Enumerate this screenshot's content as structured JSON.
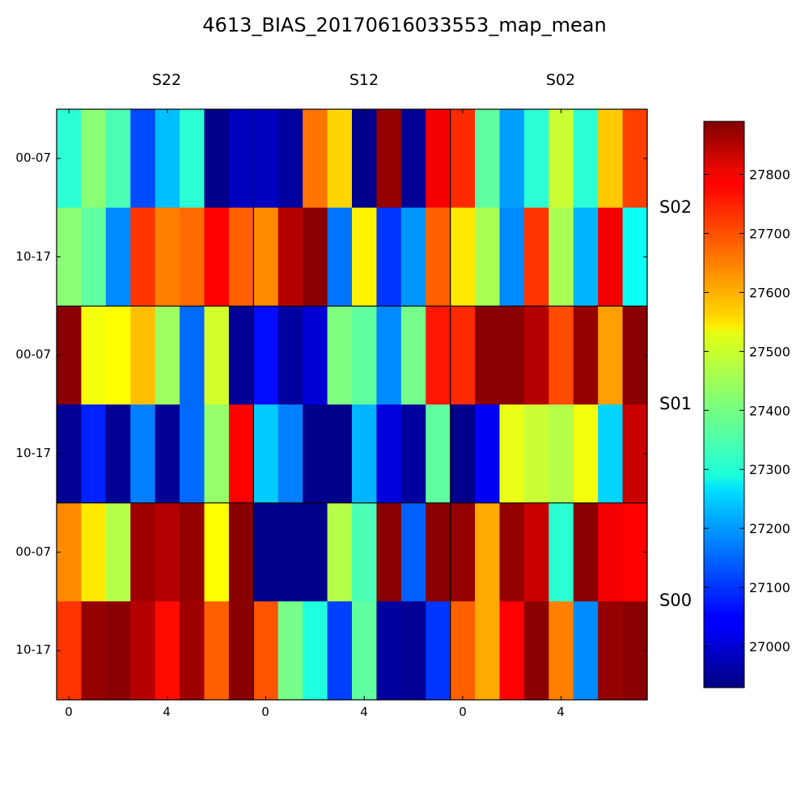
{
  "chart_data": {
    "type": "heatmap",
    "title": "4613_BIAS_20170616033553_map_mean",
    "column_groups": [
      "S22",
      "S12",
      "S02"
    ],
    "row_groups": [
      "S02",
      "S01",
      "S00"
    ],
    "row_labels": [
      "00-07",
      "10-17",
      "00-07",
      "10-17",
      "00-07",
      "10-17"
    ],
    "x_tick_labels": [
      "0",
      "4"
    ],
    "x_ticks": [
      0,
      4
    ],
    "colorbar": {
      "colormap": "jet",
      "vmin": 26930,
      "vmax": 27890,
      "ticks": [
        27000,
        27100,
        27200,
        27300,
        27400,
        27500,
        27600,
        27700,
        27800
      ],
      "tick_labels": [
        "27000",
        "27100",
        "27200",
        "27300",
        "27400",
        "27500",
        "27600",
        "27700",
        "27800"
      ]
    },
    "values": [
      [
        27330,
        27420,
        27360,
        27120,
        27230,
        27330,
        26940,
        26990,
        26990,
        26960,
        27660,
        27570,
        26940,
        27870,
        26950,
        27780,
        27730,
        27380,
        27200,
        27330,
        27480,
        27330,
        27580,
        27710
      ],
      [
        27420,
        27380,
        27180,
        27720,
        27650,
        27670,
        27770,
        27680,
        27640,
        27840,
        27880,
        27160,
        27540,
        27100,
        27190,
        27680,
        27550,
        27450,
        27180,
        27720,
        27450,
        27220,
        27780,
        27300
      ],
      [
        27880,
        27520,
        27530,
        27590,
        27440,
        27150,
        27490,
        26950,
        27060,
        26960,
        27010,
        27410,
        27380,
        27180,
        27400,
        27750,
        27730,
        27880,
        27880,
        27840,
        27700,
        27870,
        27620,
        27880
      ],
      [
        26950,
        27080,
        26950,
        27170,
        26950,
        27150,
        27430,
        27770,
        27240,
        27170,
        26940,
        26940,
        27220,
        27020,
        26960,
        27380,
        26940,
        27040,
        27510,
        27480,
        27460,
        27520,
        27250,
        27820
      ],
      [
        27640,
        27550,
        27460,
        27860,
        27840,
        27870,
        27530,
        27880,
        26940,
        26940,
        26940,
        27460,
        27360,
        27880,
        27140,
        27880,
        27870,
        27610,
        27870,
        27820,
        27330,
        27880,
        27780,
        27770
      ],
      [
        27720,
        27870,
        27880,
        27840,
        27760,
        27860,
        27680,
        27880,
        27690,
        27400,
        27320,
        27110,
        27380,
        26960,
        26950,
        27100,
        27680,
        27610,
        27770,
        27880,
        27650,
        27180,
        27870,
        27880
      ]
    ]
  }
}
